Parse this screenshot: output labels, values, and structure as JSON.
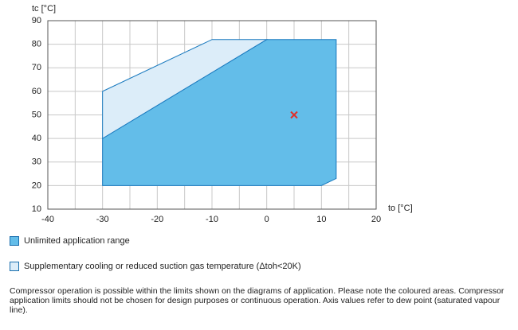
{
  "chart_data": {
    "type": "envelope",
    "y_label": "tc [°C]",
    "x_label": "to [°C]",
    "xlim": [
      -40,
      20
    ],
    "ylim": [
      10,
      90
    ],
    "xticks": [
      -40,
      -30,
      -20,
      -10,
      0,
      10,
      20
    ],
    "x_minor_grid": [
      -35,
      -25,
      -15,
      -5,
      5,
      15
    ],
    "yticks": [
      10,
      20,
      30,
      40,
      50,
      60,
      70,
      80,
      90
    ],
    "grid": true,
    "series": [
      {
        "name": "Unlimited application range",
        "color": "#63bde9",
        "x": [
          -30,
          -30,
          0,
          12.7,
          12.7,
          10
        ],
        "values": [
          20,
          40,
          82,
          82,
          23,
          20
        ]
      },
      {
        "name": "Supplementary cooling or reduced suction gas temperature (Δtoh<20K)",
        "color": "#dcedf9",
        "x": [
          -30,
          -30,
          -10,
          0
        ],
        "values": [
          40,
          60,
          82,
          82
        ]
      }
    ],
    "operating_point": {
      "x": 5,
      "y": 50,
      "color": "#e0302a"
    },
    "note": "Compressor operation is possible within the limits shown on the diagrams of application. Please note the coloured areas. Compressor application limits should not be chosen for design purposes or continuous operation. Axis values refer to dew point (saturated vapour line)."
  }
}
